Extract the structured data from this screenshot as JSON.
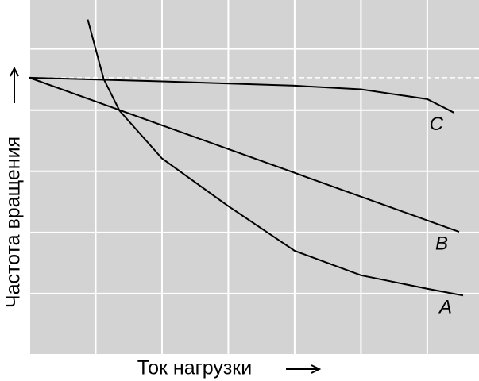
{
  "chart_data": {
    "type": "line",
    "x_label": "Ток нагрузки",
    "y_label": "Частота вращения",
    "xlim": [
      0,
      6.78
    ],
    "ylim": [
      0,
      5.8
    ],
    "xticks": [
      0,
      1,
      2,
      3,
      4,
      5,
      6
    ],
    "yticks": [
      0,
      1,
      2,
      3,
      4,
      5
    ],
    "grid": true,
    "reference_y": 4.53,
    "series": [
      {
        "name": "C",
        "color": "#000000",
        "x": [
          0,
          2,
          4,
          5,
          6,
          6.4
        ],
        "values": [
          4.53,
          4.47,
          4.4,
          4.34,
          4.18,
          3.96
        ]
      },
      {
        "name": "B",
        "color": "#000000",
        "x": [
          0,
          6.48
        ],
        "values": [
          4.53,
          2.01
        ]
      },
      {
        "name": "A",
        "color": "#000000",
        "x": [
          0.88,
          1.12,
          1.36,
          2,
          3,
          4,
          5,
          6,
          6.54
        ],
        "values": [
          5.48,
          4.51,
          3.99,
          3.21,
          2.43,
          1.7,
          1.3,
          1.08,
          0.97
        ]
      }
    ]
  }
}
